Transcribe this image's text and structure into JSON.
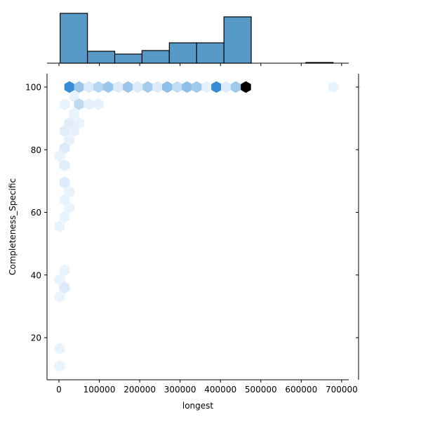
{
  "chart_data": {
    "type": "hexbin-jointplot",
    "title": "",
    "xlabel": "longest",
    "ylabel": "Completeness_Specific",
    "xlim": [
      -30000,
      715000
    ],
    "ylim": [
      7,
      105
    ],
    "x_ticks": [
      0,
      100000,
      200000,
      300000,
      400000,
      500000,
      600000,
      700000
    ],
    "x_tick_labels": [
      "0",
      "100000",
      "200000",
      "300000",
      "400000",
      "500000",
      "600000",
      "700000"
    ],
    "y_ticks": [
      20,
      40,
      60,
      80,
      100
    ],
    "y_tick_labels": [
      "20",
      "40",
      "60",
      "80",
      "100"
    ],
    "grid": false,
    "legend": null,
    "marginal_x_histogram": {
      "bin_edges": [
        3000,
        70600,
        138200,
        205800,
        273400,
        341000,
        408600,
        476200,
        543800,
        611400,
        679000
      ],
      "relative_heights": [
        71,
        17,
        13,
        18,
        29,
        29,
        66,
        0,
        0,
        1
      ],
      "color": "#5799c7",
      "edge_color": "#000000"
    },
    "marginal_y_histogram": {
      "note_visible": "single thin bar at Completeness_Specific = 100",
      "color": "#5799c7"
    },
    "hexbin": {
      "colormap": "light-to-dark blue, max count black",
      "cells": [
        {
          "x": 26000,
          "y": 100,
          "level": 0.75
        },
        {
          "x": 50000,
          "y": 100,
          "level": 0.35
        },
        {
          "x": 74000,
          "y": 100,
          "level": 0.1
        },
        {
          "x": 98000,
          "y": 100,
          "level": 0.25
        },
        {
          "x": 122000,
          "y": 100,
          "level": 0.35
        },
        {
          "x": 147000,
          "y": 100,
          "level": 0.1
        },
        {
          "x": 171000,
          "y": 100,
          "level": 0.35
        },
        {
          "x": 195000,
          "y": 100,
          "level": 0.1
        },
        {
          "x": 220000,
          "y": 100,
          "level": 0.32
        },
        {
          "x": 244000,
          "y": 100,
          "level": 0.1
        },
        {
          "x": 268000,
          "y": 100,
          "level": 0.4
        },
        {
          "x": 293000,
          "y": 100,
          "level": 0.2
        },
        {
          "x": 317000,
          "y": 100,
          "level": 0.4
        },
        {
          "x": 341000,
          "y": 100,
          "level": 0.33
        },
        {
          "x": 366000,
          "y": 100,
          "level": 0.06
        },
        {
          "x": 390000,
          "y": 100,
          "level": 0.75
        },
        {
          "x": 414000,
          "y": 100,
          "level": 0.1
        },
        {
          "x": 438000,
          "y": 100,
          "level": 0.33
        },
        {
          "x": 463000,
          "y": 100,
          "level": 1.0
        },
        {
          "x": 680000,
          "y": 100,
          "level": 0.05
        },
        {
          "x": 38000,
          "y": 97,
          "level": 0.05
        },
        {
          "x": 14000,
          "y": 94.5,
          "level": 0.05
        },
        {
          "x": 50000,
          "y": 94.5,
          "level": 0.22
        },
        {
          "x": 74000,
          "y": 94.5,
          "level": 0.06
        },
        {
          "x": 98000,
          "y": 94.5,
          "level": 0.06
        },
        {
          "x": 38000,
          "y": 91.5,
          "level": 0.05
        },
        {
          "x": 26000,
          "y": 88.5,
          "level": 0.08
        },
        {
          "x": 50000,
          "y": 88.5,
          "level": 0.05
        },
        {
          "x": 14000,
          "y": 86,
          "level": 0.08
        },
        {
          "x": 38000,
          "y": 86,
          "level": 0.06
        },
        {
          "x": 26000,
          "y": 83,
          "level": 0.06
        },
        {
          "x": 14000,
          "y": 80.5,
          "level": 0.1
        },
        {
          "x": 2000,
          "y": 78,
          "level": 0.05
        },
        {
          "x": 14000,
          "y": 75,
          "level": 0.08
        },
        {
          "x": 14000,
          "y": 69.5,
          "level": 0.1
        },
        {
          "x": 26000,
          "y": 66.5,
          "level": 0.05
        },
        {
          "x": 14000,
          "y": 64,
          "level": 0.05
        },
        {
          "x": 26000,
          "y": 61.5,
          "level": 0.05
        },
        {
          "x": 14000,
          "y": 58.5,
          "level": 0.05
        },
        {
          "x": 2000,
          "y": 55.5,
          "level": 0.05
        },
        {
          "x": 14000,
          "y": 41.5,
          "level": 0.05
        },
        {
          "x": 2000,
          "y": 38.5,
          "level": 0.05
        },
        {
          "x": 14000,
          "y": 36,
          "level": 0.1
        },
        {
          "x": 2000,
          "y": 33,
          "level": 0.05
        },
        {
          "x": 2000,
          "y": 16.5,
          "level": 0.05
        },
        {
          "x": 2000,
          "y": 11,
          "level": 0.05
        }
      ]
    }
  }
}
